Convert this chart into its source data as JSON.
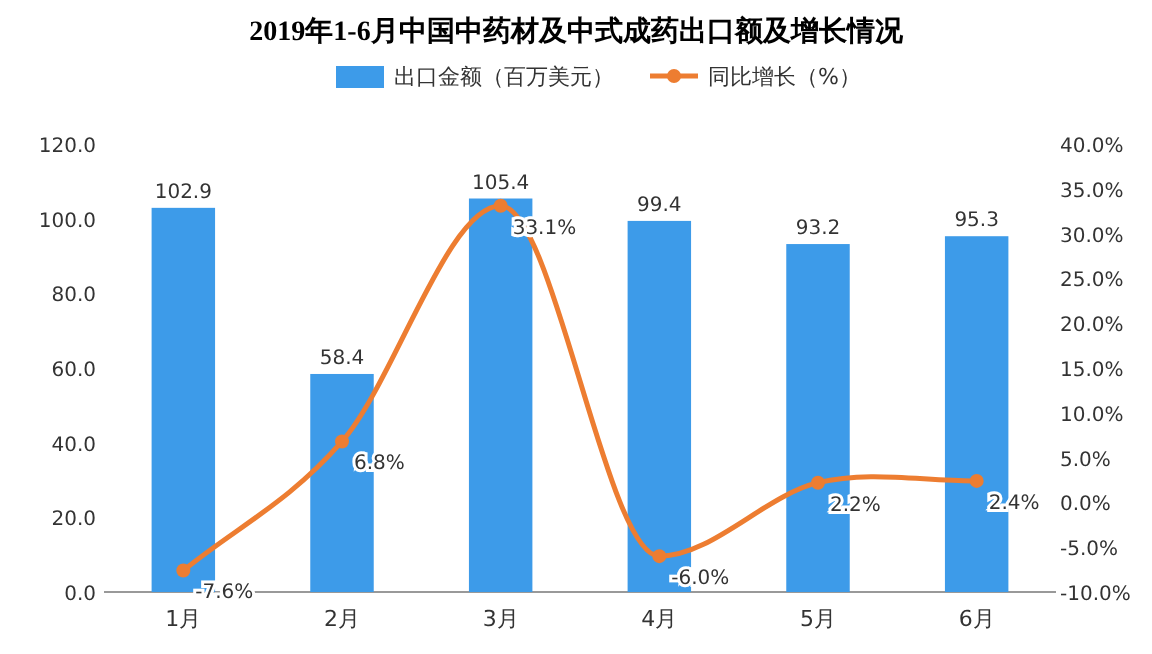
{
  "chart_data": {
    "type": "bar",
    "title": "2019年1-6月中国中药材及中式成药出口额及增长情况",
    "categories": [
      "1月",
      "2月",
      "3月",
      "4月",
      "5月",
      "6月"
    ],
    "series": [
      {
        "name": "出口金额（百万美元）",
        "color": "#3d9be9",
        "values": [
          102.9,
          58.4,
          105.4,
          99.4,
          93.2,
          95.3
        ],
        "value_labels": [
          "102.9",
          "58.4",
          "105.4",
          "99.4",
          "93.2",
          "95.3"
        ]
      },
      {
        "name": "同比增长（%）",
        "type": "line",
        "axis": "y2",
        "color": "#ed7d31",
        "marker": "circle",
        "values": [
          -7.6,
          6.8,
          33.1,
          -6.0,
          2.2,
          2.4
        ],
        "value_labels": [
          "-7.6%",
          "6.8%",
          "33.1%",
          "-6.0%",
          "2.2%",
          "2.4%"
        ]
      }
    ],
    "ylim": [
      0,
      120
    ],
    "yticks": [
      {
        "value": 0,
        "label": "0.0"
      },
      {
        "value": 20,
        "label": "20.0"
      },
      {
        "value": 40,
        "label": "40.0"
      },
      {
        "value": 60,
        "label": "60.0"
      },
      {
        "value": 80,
        "label": "80.0"
      },
      {
        "value": 100,
        "label": "100.0"
      },
      {
        "value": 120,
        "label": "120.0"
      }
    ],
    "y2lim": [
      -10,
      40
    ],
    "y2ticks": [
      {
        "value": -10,
        "label": "-10.0%"
      },
      {
        "value": -5,
        "label": "-5.0%"
      },
      {
        "value": 0,
        "label": "0.0%"
      },
      {
        "value": 5,
        "label": "5.0%"
      },
      {
        "value": 10,
        "label": "10.0%"
      },
      {
        "value": 15,
        "label": "15.0%"
      },
      {
        "value": 20,
        "label": "20.0%"
      },
      {
        "value": 25,
        "label": "25.0%"
      },
      {
        "value": 30,
        "label": "30.0%"
      },
      {
        "value": 35,
        "label": "35.0%"
      },
      {
        "value": 40,
        "label": "40.0%"
      }
    ],
    "legend": "top",
    "grid": false
  }
}
